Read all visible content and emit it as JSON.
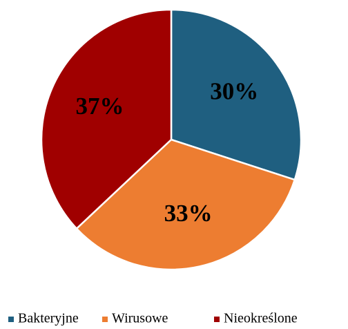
{
  "chart_data": {
    "type": "pie",
    "categories": [
      "Bakteryjne",
      "Wirusowe",
      "Nieokreślone"
    ],
    "values": [
      30,
      33,
      37
    ],
    "value_labels": [
      "30%",
      "33%",
      "37%"
    ],
    "colors": [
      "#1f5f80",
      "#ed7d31",
      "#a00000"
    ],
    "legend": "bottom"
  }
}
